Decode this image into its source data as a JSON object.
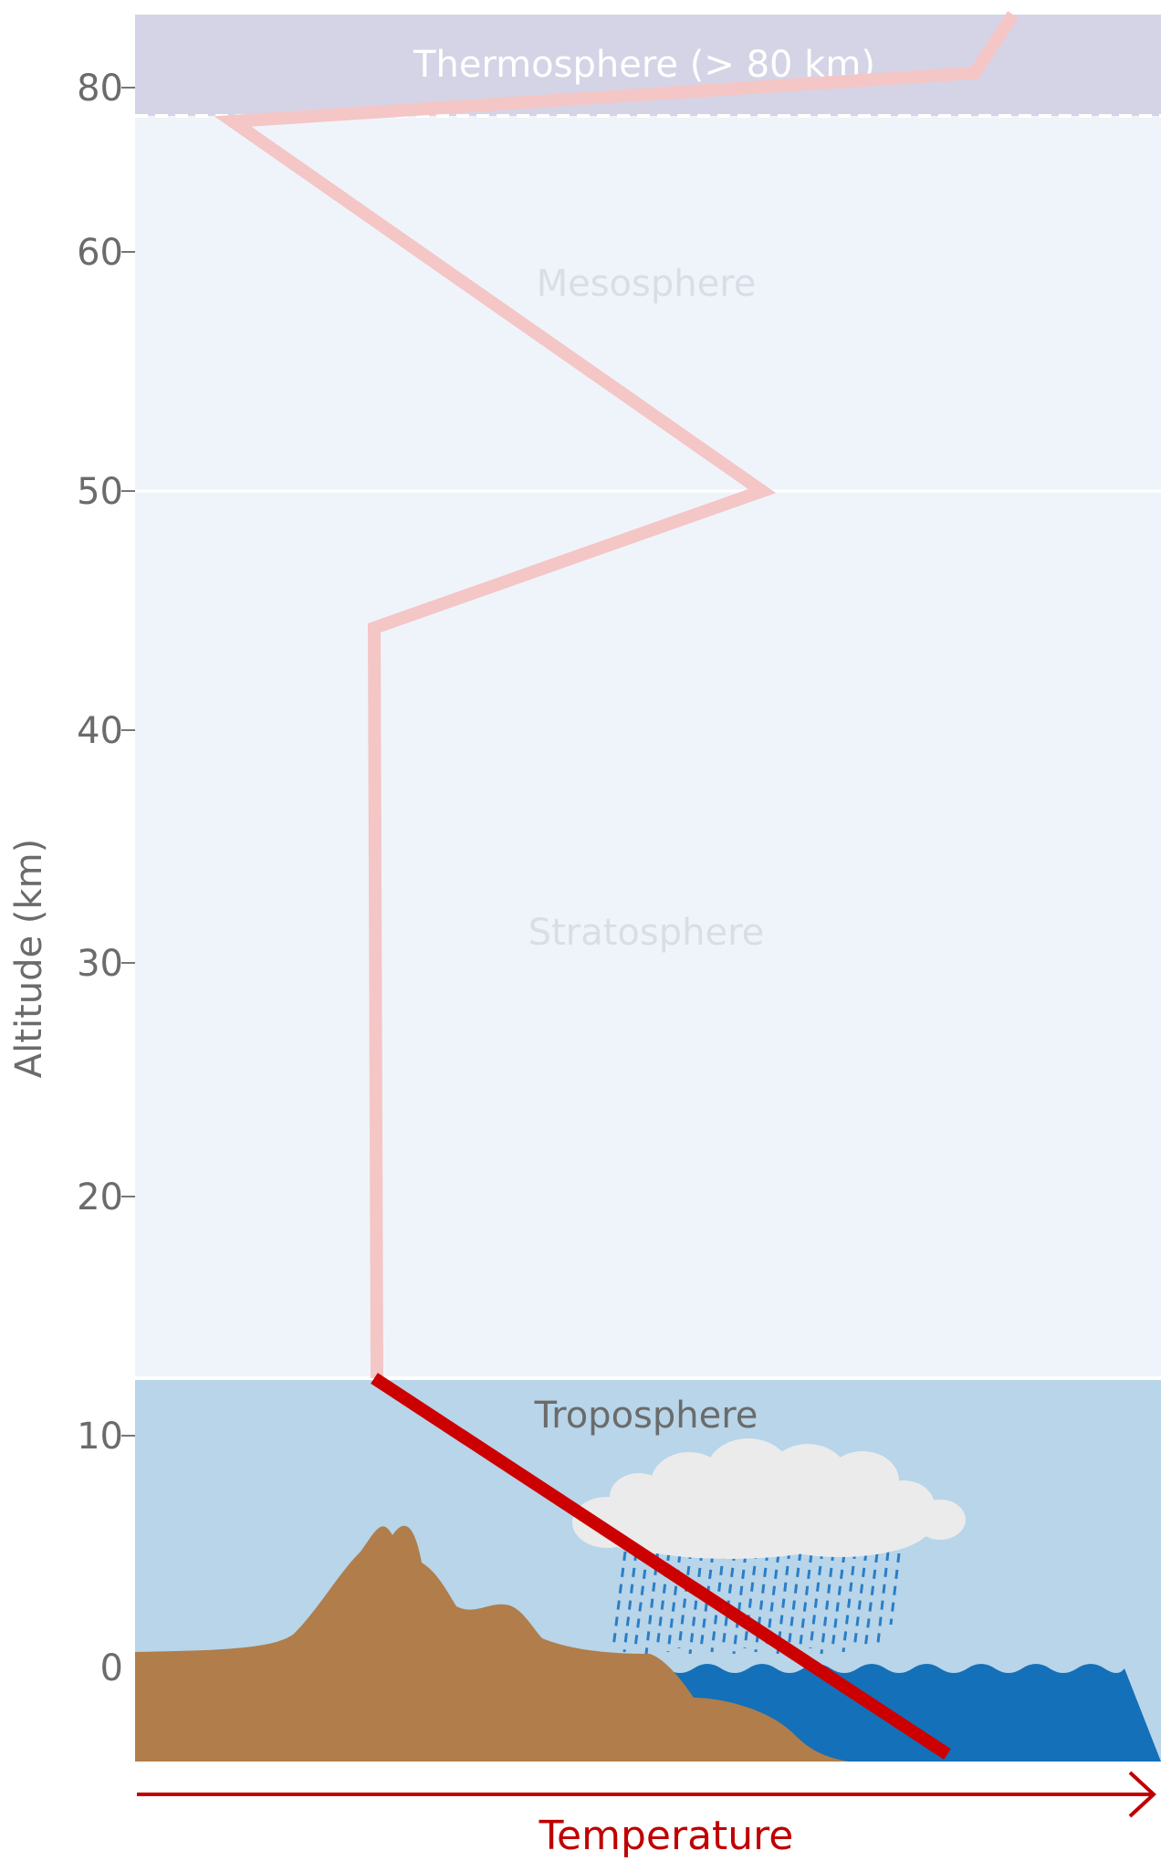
{
  "diagram": {
    "y_axis": {
      "title": "Altitude (km)",
      "ticks": [
        {
          "value": 80,
          "label": "80"
        },
        {
          "value": 60,
          "label": "60"
        },
        {
          "value": 50,
          "label": "50"
        },
        {
          "value": 40,
          "label": "40"
        },
        {
          "value": 30,
          "label": "30"
        },
        {
          "value": 20,
          "label": "20"
        },
        {
          "value": 10,
          "label": "10"
        },
        {
          "value": 0,
          "label": "0"
        }
      ]
    },
    "x_axis": {
      "title": "Temperature"
    },
    "layers": {
      "thermosphere": "Thermosphere (> 80 km)",
      "mesosphere": "Mesosphere",
      "stratosphere": "Stratosphere",
      "troposphere": "Troposphere"
    },
    "colors": {
      "thermosphere_bg": "#d5d4e6",
      "upper_bg": "#eff4fa",
      "troposphere_bg": "#b8d5e9",
      "ground": "#b07d4b",
      "ocean": "#1470b8",
      "cloud": "#ebebeb",
      "rain": "#2a7ec7",
      "temperature_line_highlight": "#cc0000",
      "temperature_line_faded": "#f4c6c6",
      "temperature_arrow": "#c00000"
    }
  }
}
